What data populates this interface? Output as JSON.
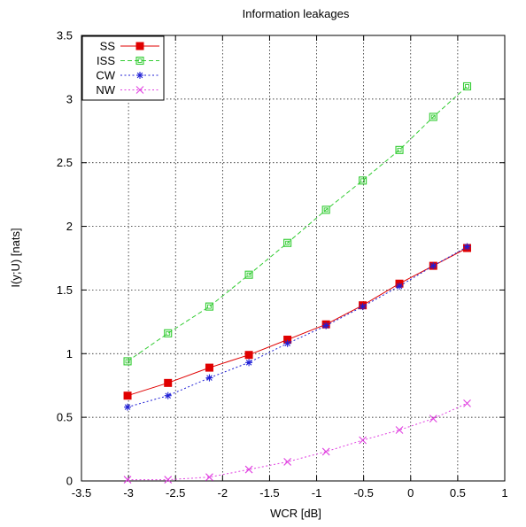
{
  "chart_data": {
    "type": "line",
    "title": "Information leakages",
    "xlabel": "WCR [dB]",
    "ylabel": "I(y;U) [nats]",
    "xlim": [
      -3.5,
      1
    ],
    "ylim": [
      0,
      3.5
    ],
    "xticks": [
      -3.5,
      -3,
      -2.5,
      -2,
      -1.5,
      -1,
      -0.5,
      0,
      0.5,
      1
    ],
    "yticks": [
      0,
      0.5,
      1,
      1.5,
      2,
      2.5,
      3,
      3.5
    ],
    "xtick_labels": [
      "-3.5",
      "-3",
      "-2.5",
      "-2",
      "-1.5",
      "-1",
      "-0.5",
      "0",
      "0.5",
      "1"
    ],
    "ytick_labels": [
      "0",
      "0.5",
      "1",
      "1.5",
      "2",
      "2.5",
      "3",
      "3.5"
    ],
    "grid": true,
    "legend_position": "top-left",
    "x": [
      -3.01,
      -2.58,
      -2.14,
      -1.72,
      -1.31,
      -0.9,
      -0.51,
      -0.12,
      0.24,
      0.6
    ],
    "series": [
      {
        "name": "SS",
        "color": "#e00000",
        "marker": "filled-square",
        "line": "solid",
        "values": [
          0.67,
          0.77,
          0.89,
          0.99,
          1.11,
          1.23,
          1.38,
          1.55,
          1.69,
          1.83
        ]
      },
      {
        "name": "ISS",
        "color": "#33cc33",
        "marker": "open-square",
        "line": "dashed",
        "values": [
          0.94,
          1.16,
          1.37,
          1.62,
          1.87,
          2.13,
          2.36,
          2.6,
          2.86,
          3.1
        ]
      },
      {
        "name": "CW",
        "color": "#1f1fd6",
        "marker": "asterisk",
        "line": "dotted",
        "values": [
          0.58,
          0.67,
          0.81,
          0.93,
          1.08,
          1.22,
          1.37,
          1.53,
          1.69,
          1.84
        ]
      },
      {
        "name": "NW",
        "color": "#e040e0",
        "marker": "cross",
        "line": "dotted",
        "values": [
          0.01,
          0.01,
          0.03,
          0.09,
          0.15,
          0.23,
          0.32,
          0.4,
          0.49,
          0.61
        ]
      }
    ]
  }
}
